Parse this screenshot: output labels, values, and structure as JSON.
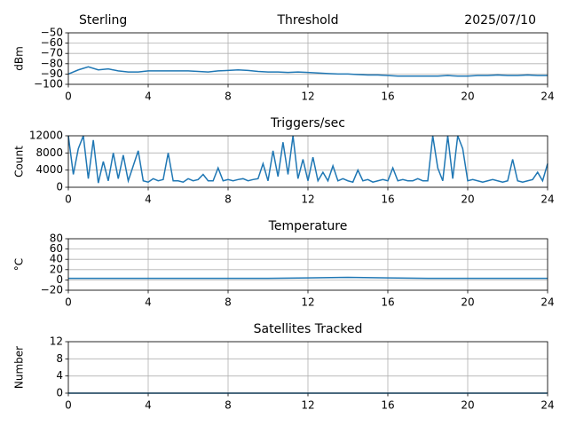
{
  "chart_data": [
    {
      "type": "line",
      "title_left": "Sterling",
      "title": "Threshold",
      "title_right": "2025/07/10",
      "ylabel": "dBm",
      "x": [
        0,
        0.5,
        1,
        1.5,
        2,
        2.5,
        3,
        3.5,
        4,
        4.5,
        5,
        5.5,
        6,
        6.5,
        7,
        7.5,
        8,
        8.5,
        9,
        9.5,
        10,
        10.5,
        11,
        11.5,
        12,
        12.5,
        13,
        13.5,
        14,
        14.5,
        15,
        15.5,
        16,
        16.5,
        17,
        17.5,
        18,
        18.5,
        19,
        19.5,
        20,
        20.5,
        21,
        21.5,
        22,
        22.5,
        23,
        23.5,
        24
      ],
      "series": [
        {
          "color": "#1f77b4",
          "values": [
            -90,
            -86,
            -83,
            -86,
            -85,
            -87,
            -88,
            -88,
            -87,
            -87,
            -87,
            -87,
            -87,
            -87.5,
            -88,
            -87,
            -86.5,
            -86,
            -86.5,
            -87.5,
            -88,
            -88,
            -88.5,
            -88,
            -88.5,
            -89,
            -89.5,
            -90,
            -90,
            -90.5,
            -91,
            -91,
            -91.5,
            -92,
            -92,
            -92,
            -92,
            -92,
            -91.5,
            -92,
            -92,
            -91.5,
            -91.5,
            -91,
            -91.5,
            -91.5,
            -91,
            -91.5,
            -91.5
          ]
        }
      ],
      "xlim": [
        0,
        24
      ],
      "xticks": [
        0,
        4,
        8,
        12,
        16,
        20,
        24
      ],
      "ylim": [
        -100,
        -50
      ],
      "yticks": [
        {
          "value": -100,
          "label": "−100"
        },
        {
          "value": -90,
          "label": "−90"
        },
        {
          "value": -80,
          "label": "−80"
        },
        {
          "value": -70,
          "label": "−70"
        },
        {
          "value": -60,
          "label": "−60"
        },
        {
          "value": -50,
          "label": "−50"
        }
      ],
      "grid": true
    },
    {
      "type": "line",
      "title": "Triggers/sec",
      "ylabel": "Count",
      "x": [
        0,
        0.25,
        0.5,
        0.75,
        1,
        1.25,
        1.5,
        1.75,
        2,
        2.25,
        2.5,
        2.75,
        3,
        3.25,
        3.5,
        3.75,
        4,
        4.25,
        4.5,
        4.75,
        5,
        5.25,
        5.5,
        5.75,
        6,
        6.25,
        6.5,
        6.75,
        7,
        7.25,
        7.5,
        7.75,
        8,
        8.25,
        8.5,
        8.75,
        9,
        9.25,
        9.5,
        9.75,
        10,
        10.25,
        10.5,
        10.75,
        11,
        11.25,
        11.5,
        11.75,
        12,
        12.25,
        12.5,
        12.75,
        13,
        13.25,
        13.5,
        13.75,
        14,
        14.25,
        14.5,
        14.75,
        15,
        15.25,
        15.5,
        15.75,
        16,
        16.25,
        16.5,
        16.75,
        17,
        17.25,
        17.5,
        17.75,
        18,
        18.25,
        18.5,
        18.75,
        19,
        19.25,
        19.5,
        19.75,
        20,
        20.25,
        20.5,
        20.75,
        21,
        21.25,
        21.5,
        21.75,
        22,
        22.25,
        22.5,
        22.75,
        23,
        23.25,
        23.5,
        23.75,
        24
      ],
      "series": [
        {
          "color": "#1f77b4",
          "values": [
            12000,
            3000,
            9000,
            12000,
            2000,
            11000,
            1000,
            6000,
            1500,
            8000,
            2000,
            7500,
            1500,
            5000,
            8500,
            1500,
            1200,
            2000,
            1500,
            1800,
            8000,
            1500,
            1500,
            1200,
            2000,
            1500,
            1800,
            3000,
            1500,
            1500,
            4500,
            1500,
            1800,
            1500,
            1800,
            2000,
            1500,
            1800,
            2000,
            5500,
            1500,
            8500,
            2500,
            10500,
            3000,
            12000,
            2000,
            6500,
            1500,
            7000,
            1500,
            3500,
            1500,
            5000,
            1500,
            2000,
            1500,
            1200,
            4000,
            1500,
            1800,
            1200,
            1500,
            1800,
            1500,
            4500,
            1500,
            1800,
            1500,
            1500,
            2000,
            1500,
            1500,
            12000,
            4500,
            1500,
            12000,
            2000,
            12000,
            9000,
            1500,
            1800,
            1500,
            1200,
            1500,
            1800,
            1500,
            1200,
            1500,
            6500,
            1500,
            1200,
            1500,
            1800,
            3500,
            1500,
            5500
          ]
        }
      ],
      "xlim": [
        0,
        24
      ],
      "xticks": [
        0,
        4,
        8,
        12,
        16,
        20,
        24
      ],
      "ylim": [
        0,
        12000
      ],
      "yticks": [
        0,
        4000,
        8000,
        12000
      ],
      "grid": true
    },
    {
      "type": "line",
      "title": "Temperature",
      "ylabel": "°C",
      "x": [
        0,
        2,
        4,
        6,
        8,
        10,
        12,
        14,
        16,
        18,
        20,
        22,
        24
      ],
      "series": [
        {
          "color": "#1f77b4",
          "values": [
            3,
            3,
            3,
            3,
            3,
            3,
            4,
            5,
            4,
            3,
            3,
            3,
            3
          ]
        }
      ],
      "xlim": [
        0,
        24
      ],
      "xticks": [
        0,
        4,
        8,
        12,
        16,
        20,
        24
      ],
      "ylim": [
        -20,
        80
      ],
      "yticks": [
        {
          "value": -20,
          "label": "−20"
        },
        0,
        20,
        40,
        60,
        80
      ],
      "grid": true
    },
    {
      "type": "line",
      "title": "Satellites Tracked",
      "ylabel": "Number",
      "x": [
        0,
        2,
        4,
        6,
        8,
        10,
        12,
        14,
        16,
        18,
        20,
        22,
        24
      ],
      "series": [
        {
          "color": "#1f77b4",
          "values": [
            0,
            0,
            0,
            0,
            0,
            0,
            0,
            0,
            0,
            0,
            0,
            0,
            0
          ]
        }
      ],
      "xlim": [
        0,
        24
      ],
      "xticks": [
        0,
        4,
        8,
        12,
        16,
        20,
        24
      ],
      "ylim": [
        0,
        12
      ],
      "yticks": [
        0,
        4,
        8,
        12
      ],
      "grid": true
    }
  ]
}
